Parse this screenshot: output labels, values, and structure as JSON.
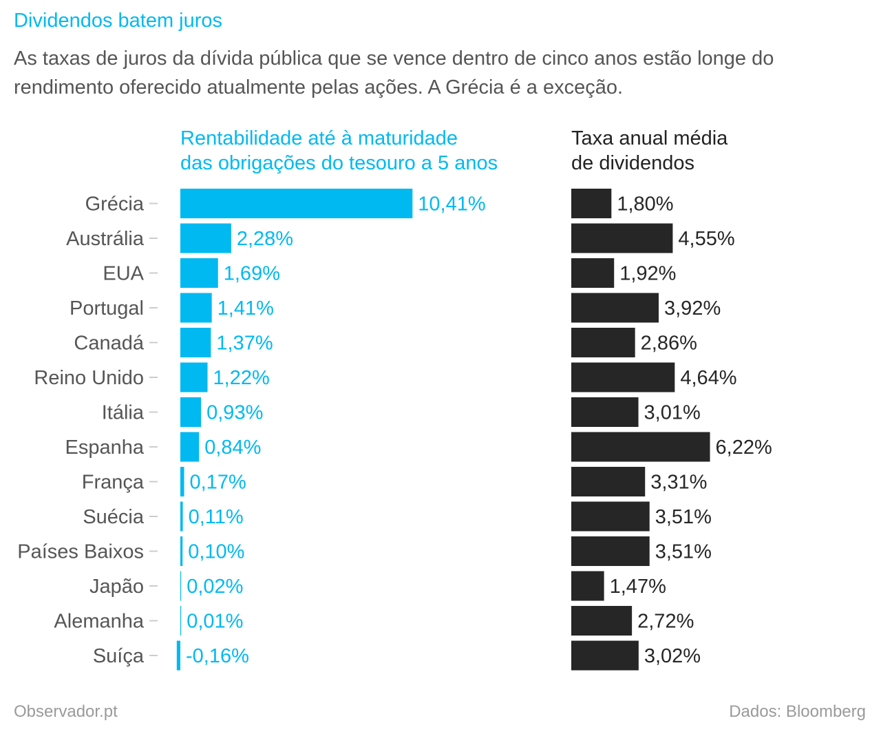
{
  "header": {
    "title": "Dividendos batem juros",
    "subtitle": "As taxas de juros da dívida pública que se vence dentro de cinco anos estão longe do rendimento oferecido atualmente pelas ações. A Grécia é a exceção."
  },
  "footer": {
    "source_left": "Observador.pt",
    "source_right": "Dados: Bloomberg"
  },
  "colors": {
    "yield": "#00b9f1",
    "dividend": "#262626",
    "labels": "#555555",
    "ticks": "#cccccc"
  },
  "chart_data": {
    "type": "bar",
    "orientation": "horizontal",
    "categories": [
      "Grécia",
      "Austrália",
      "EUA",
      "Portugal",
      "Canadá",
      "Reino Unido",
      "Itália",
      "Espanha",
      "França",
      "Suécia",
      "Países Baixos",
      "Japão",
      "Alemanha",
      "Suíça"
    ],
    "series": [
      {
        "name": "Rentabilidade até à maturidade das obrigações do tesouro a 5 anos",
        "values": [
          10.41,
          2.28,
          1.69,
          1.41,
          1.37,
          1.22,
          0.93,
          0.84,
          0.17,
          0.11,
          0.1,
          0.02,
          0.01,
          -0.16
        ],
        "labels": [
          "10,41%",
          "2,28%",
          "1,69%",
          "1,41%",
          "1,37%",
          "1,22%",
          "0,93%",
          "0,84%",
          "0,17%",
          "0,11%",
          "0,10%",
          "0,02%",
          "0,01%",
          "-0,16%"
        ]
      },
      {
        "name": "Taxa anual média de dividendos",
        "values": [
          1.8,
          4.55,
          1.92,
          3.92,
          2.86,
          4.64,
          3.01,
          6.22,
          3.31,
          3.51,
          3.51,
          1.47,
          2.72,
          3.02
        ],
        "labels": [
          "1,80%",
          "4,55%",
          "1,92%",
          "3,92%",
          "2,86%",
          "4,64%",
          "3,01%",
          "6,22%",
          "3,31%",
          "3,51%",
          "3,51%",
          "1,47%",
          "2,72%",
          "3,02%"
        ]
      }
    ],
    "column_titles": [
      [
        "Rentabilidade até à maturidade",
        "das obrigações do tesouro a 5 anos"
      ],
      [
        "Taxa anual média",
        "de dividendos"
      ]
    ],
    "grid": false,
    "legend": "none"
  }
}
